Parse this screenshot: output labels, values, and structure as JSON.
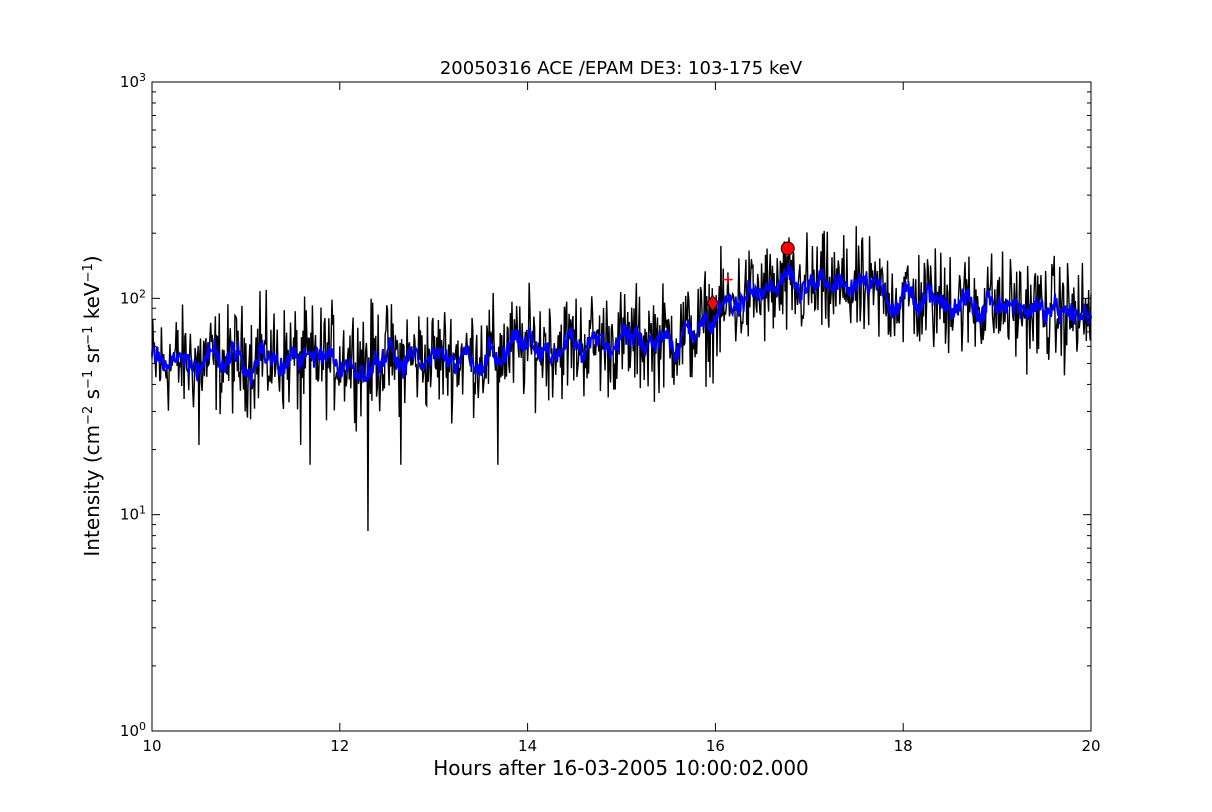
{
  "chart_data": {
    "type": "line",
    "title": "20050316 ACE /EPAM DE3: 103-175 keV",
    "xlabel": "Hours after 16-03-2005 10:00:02.000",
    "ylabel_main": "Intensity (cm",
    "ylabel_parts": [
      {
        "text": "Intensity (cm",
        "sup": false
      },
      {
        "text": "−2",
        "sup": true
      },
      {
        "text": " s",
        "sup": false
      },
      {
        "text": "−1",
        "sup": true
      },
      {
        "text": " sr",
        "sup": false
      },
      {
        "text": "−1",
        "sup": true
      },
      {
        "text": " keV",
        "sup": false
      },
      {
        "text": "−1",
        "sup": true
      },
      {
        "text": ")",
        "sup": false
      }
    ],
    "xlim": [
      10,
      20
    ],
    "ylim": [
      1,
      1000
    ],
    "yscale": "log",
    "grid": false,
    "x_ticks": [
      10,
      12,
      14,
      16,
      18,
      20
    ],
    "x_tick_labels": [
      "10",
      "12",
      "14",
      "16",
      "18",
      "20"
    ],
    "y_ticks": [
      {
        "value": 1,
        "base": "10",
        "exp": "0"
      },
      {
        "value": 10,
        "base": "10",
        "exp": "1"
      },
      {
        "value": 100,
        "base": "10",
        "exp": "2"
      },
      {
        "value": 1000,
        "base": "10",
        "exp": "3"
      }
    ],
    "series": [
      {
        "color": "#000000",
        "x_start": 10,
        "x_end": 20,
        "profile": [
          [
            10.0,
            50
          ],
          [
            11.0,
            52
          ],
          [
            12.0,
            53
          ],
          [
            13.0,
            53
          ],
          [
            13.6,
            55
          ],
          [
            14.0,
            60
          ],
          [
            15.0,
            63
          ],
          [
            15.5,
            65
          ],
          [
            15.8,
            70
          ],
          [
            16.0,
            82
          ],
          [
            16.2,
            95
          ],
          [
            16.5,
            105
          ],
          [
            17.0,
            112
          ],
          [
            17.5,
            108
          ],
          [
            18.0,
            100
          ],
          [
            19.0,
            92
          ],
          [
            20.0,
            82
          ]
        ],
        "spikes_down": [
          [
            12.3,
            8.4
          ],
          [
            11.68,
            17
          ],
          [
            12.65,
            17
          ],
          [
            13.68,
            17
          ],
          [
            11.58,
            21
          ],
          [
            10.5,
            21
          ]
        ],
        "spikes_up": [
          [
            16.75,
            160
          ],
          [
            17.4,
            170
          ],
          [
            18.5,
            155
          ],
          [
            11.15,
            108
          ],
          [
            18.9,
            140
          ]
        ]
      },
      {
        "color": "#0000ff",
        "smoothed_of": 0
      }
    ],
    "markers": [
      {
        "kind": "diamond",
        "x": 15.97,
        "y": 95,
        "color": "#ff0000"
      },
      {
        "kind": "circle",
        "x": 16.77,
        "y": 170,
        "color": "#ff0000"
      },
      {
        "kind": "plus",
        "x": 16.13,
        "y": 122,
        "color": "#ff0000"
      }
    ]
  }
}
